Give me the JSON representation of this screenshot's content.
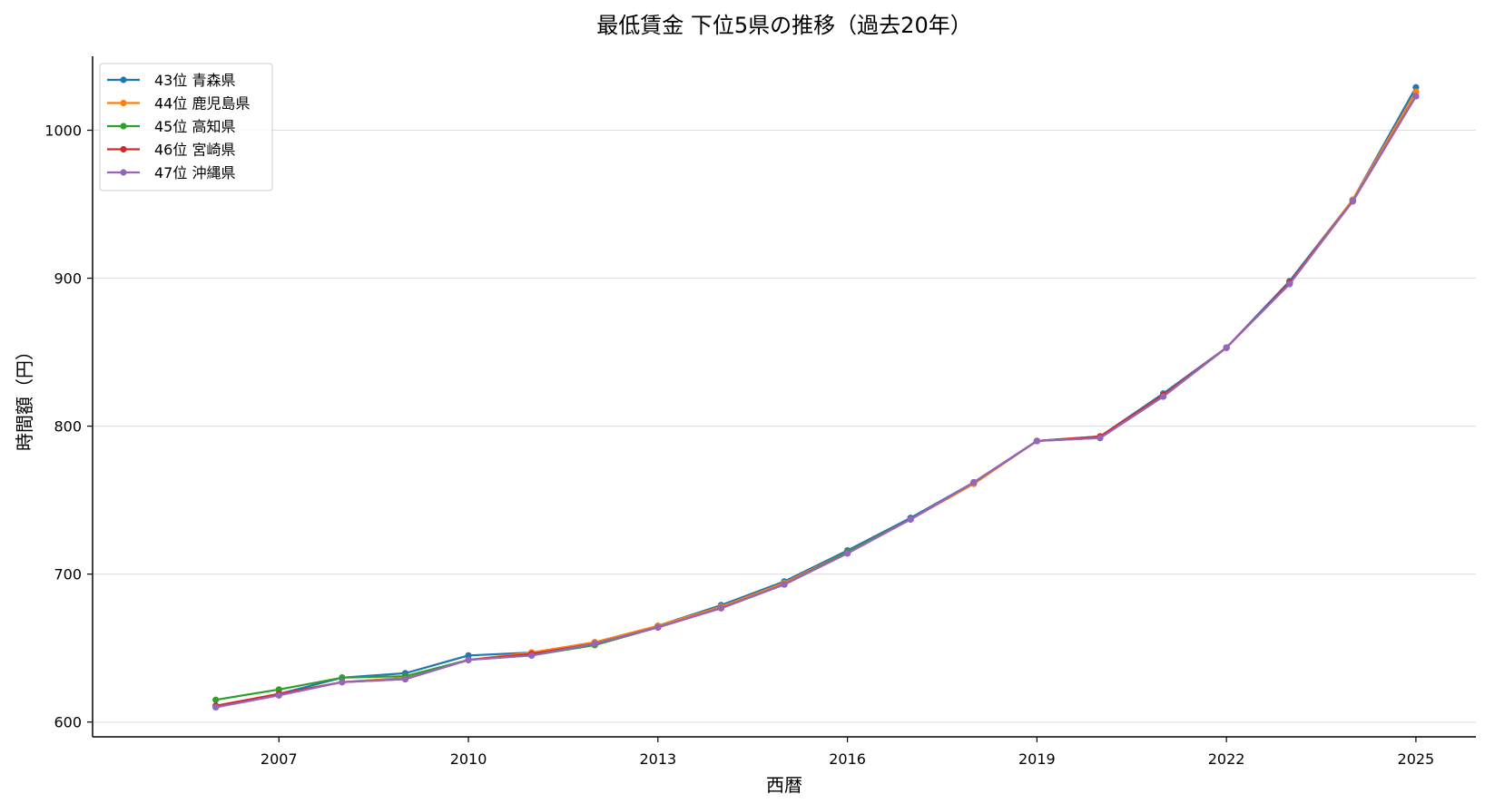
{
  "chart_data": {
    "type": "line",
    "title": "最低賃金 下位5県の推移（過去20年）",
    "xlabel": "西暦",
    "ylabel": "時間額（円）",
    "xlim": [
      2004.05,
      2025.95
    ],
    "ylim": [
      590,
      1050
    ],
    "xticks": [
      2007,
      2010,
      2013,
      2016,
      2019,
      2022,
      2025
    ],
    "yticks": [
      600,
      700,
      800,
      900,
      1000
    ],
    "grid": "horizontal",
    "legend_position": "top-left",
    "x": [
      2006,
      2007,
      2008,
      2009,
      2010,
      2011,
      2012,
      2013,
      2014,
      2015,
      2016,
      2017,
      2018,
      2019,
      2020,
      2021,
      2022,
      2023,
      2024,
      2025
    ],
    "series": [
      {
        "name": "43位 青森県",
        "color": "#1f77b4",
        "values": [
          610,
          619,
          630,
          633,
          645,
          647,
          653,
          665,
          679,
          695,
          716,
          738,
          762,
          790,
          793,
          822,
          853,
          898,
          953,
          1029
        ]
      },
      {
        "name": "44位 鹿児島県",
        "color": "#ff7f0e",
        "values": [
          611,
          619,
          627,
          630,
          642,
          647,
          654,
          665,
          678,
          694,
          715,
          737,
          761,
          790,
          793,
          821,
          853,
          897,
          953,
          1026
        ]
      },
      {
        "name": "45位 高知県",
        "color": "#2ca02c",
        "values": [
          615,
          622,
          630,
          631,
          642,
          645,
          652,
          664,
          677,
          693,
          715,
          737,
          762,
          790,
          792,
          820,
          853,
          897,
          952,
          1023
        ]
      },
      {
        "name": "46位 宮崎県",
        "color": "#d62728",
        "values": [
          611,
          619,
          627,
          629,
          642,
          646,
          653,
          664,
          677,
          693,
          714,
          737,
          762,
          790,
          793,
          821,
          853,
          897,
          952,
          1023
        ]
      },
      {
        "name": "47位 沖縄県",
        "color": "#9467bd",
        "values": [
          610,
          618,
          627,
          629,
          642,
          645,
          653,
          664,
          677,
          693,
          714,
          737,
          762,
          790,
          792,
          820,
          853,
          896,
          952,
          1023
        ]
      }
    ]
  }
}
